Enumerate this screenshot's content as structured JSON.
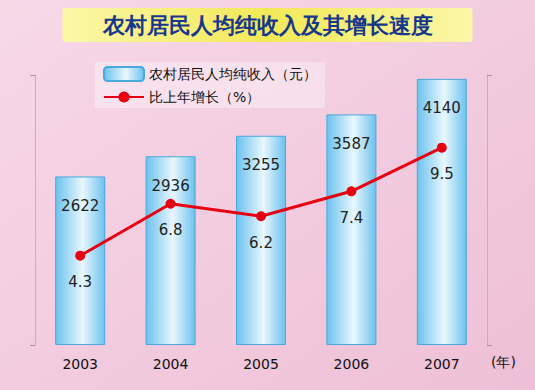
{
  "chart_data": {
    "type": "bar",
    "title": "农村居民人均纯收入及其增长速度",
    "xlabel": "(年)",
    "categories": [
      "2003",
      "2004",
      "2005",
      "2006",
      "2007"
    ],
    "series": [
      {
        "name": "农村居民人均纯收入（元）",
        "type": "bar",
        "color": "#6cc2ee",
        "values": [
          2622,
          2936,
          3255,
          3587,
          4140
        ]
      },
      {
        "name": "比上年增长（%）",
        "type": "line",
        "color": "#e60012",
        "axis": "y2",
        "marker": "circle",
        "values": [
          4.3,
          6.8,
          6.2,
          7.4,
          9.5
        ]
      }
    ],
    "ylim": [
      0,
      4200
    ],
    "yticks": [
      0,
      4200
    ],
    "y2lim": [
      0,
      13
    ],
    "y2ticks": [
      0,
      13
    ],
    "grid": false,
    "legend": "upper left",
    "data_labels": true,
    "tick_labels": false
  }
}
